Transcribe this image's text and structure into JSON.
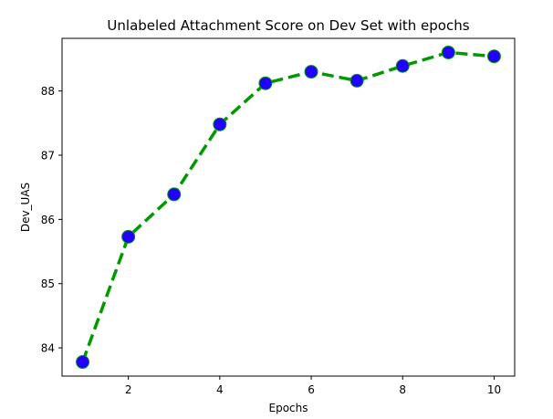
{
  "chart_data": {
    "type": "line",
    "title": "Unlabeled Attachment Score on Dev Set with epochs",
    "xlabel": "Epochs",
    "ylabel": "Dev_UAS",
    "x": [
      1,
      2,
      3,
      4,
      5,
      6,
      7,
      8,
      9,
      10
    ],
    "series": [
      {
        "values": [
          83.78,
          85.73,
          86.39,
          87.48,
          88.12,
          88.3,
          88.16,
          88.39,
          88.6,
          88.54
        ]
      }
    ],
    "xlim": [
      0.55,
      10.45
    ],
    "ylim": [
      83.56,
      88.82
    ],
    "xticks": [
      "2",
      "4",
      "6",
      "8",
      "10"
    ],
    "yticks": [
      "84",
      "85",
      "86",
      "87",
      "88"
    ],
    "style": {
      "line_color": "#009900",
      "line_style": "dashed",
      "marker": "circle",
      "marker_fill": "#2200ff",
      "marker_edge": "#009900"
    },
    "grid": false,
    "legend": "none"
  }
}
